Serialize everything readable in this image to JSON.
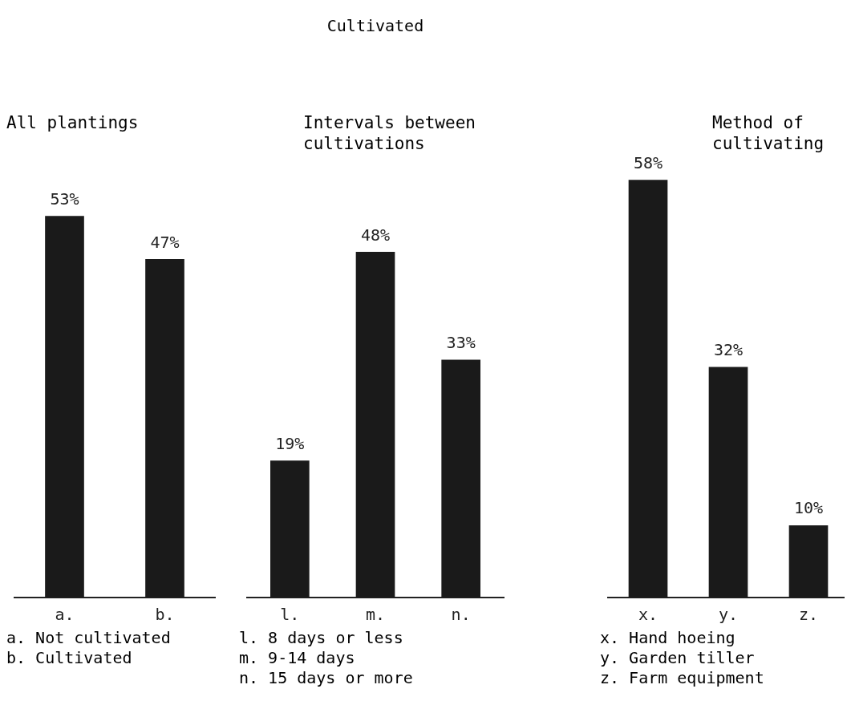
{
  "chart_data": [
    {
      "type": "bar",
      "subtitle": "All plantings",
      "categories": [
        "a.",
        "b."
      ],
      "values": [
        53,
        47
      ],
      "color": "#1a1a1a",
      "data_labels": true,
      "value_labels": [
        "53%",
        "47%"
      ],
      "annotations": [
        "a. Not cultivated",
        "b. Cultivated"
      ]
    },
    {
      "type": "bar",
      "title": "Cultivated",
      "subtitle": "Intervals between cultivations",
      "categories": [
        "l.",
        "m.",
        "n."
      ],
      "values": [
        19,
        48,
        33
      ],
      "color": "#1a1a1a",
      "data_labels": true,
      "value_labels": [
        "19%",
        "48%",
        "33%"
      ],
      "annotations": [
        "l. 8 days or less",
        "m. 9-14 days",
        "n. 15 days or more"
      ]
    },
    {
      "type": "bar",
      "subtitle": "Method of cultivating",
      "categories": [
        "x.",
        "y.",
        "z."
      ],
      "values": [
        58,
        32,
        10
      ],
      "color": "#1a1a1a",
      "data_labels": true,
      "value_labels": [
        "58%",
        "32%",
        "10%"
      ],
      "annotations": [
        "x. Hand hoeing",
        "y. Garden tiller",
        "z. Farm equipment"
      ]
    }
  ]
}
